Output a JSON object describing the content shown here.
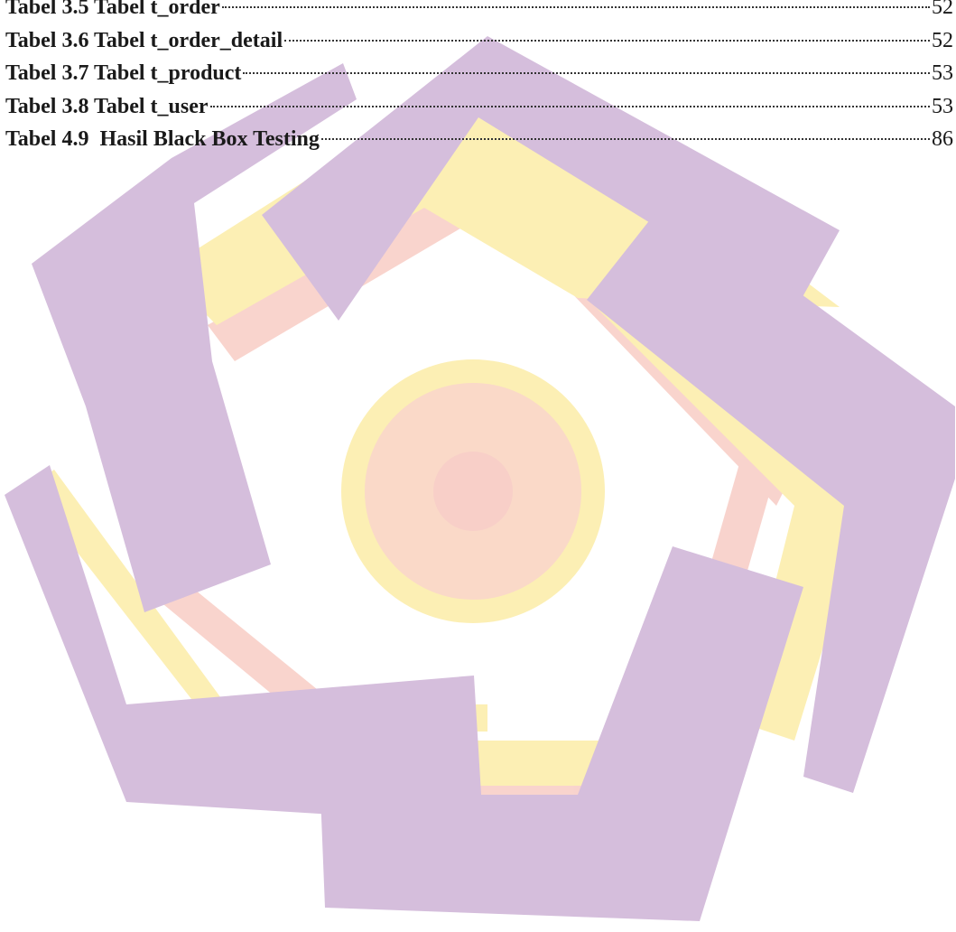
{
  "table_list": [
    {
      "label": "Tabel 3.5 Tabel t_order",
      "page": "52"
    },
    {
      "label": "Tabel 3.6 Tabel t_order_detail",
      "page": "52"
    },
    {
      "label": "Tabel 3.7 Tabel t_product",
      "page": "53"
    },
    {
      "label": "Tabel 3.8 Tabel t_user",
      "page": "53"
    },
    {
      "label": "Tabel 4.9  Hasil Black Box Testing",
      "page": "86"
    }
  ],
  "watermark": {
    "icon": "university-logo-watermark-icon",
    "colors": {
      "purple": "#d5bedc",
      "yellow": "#fcefb4",
      "peach": "#fad9c8",
      "pink": "#f8cfc8"
    }
  }
}
